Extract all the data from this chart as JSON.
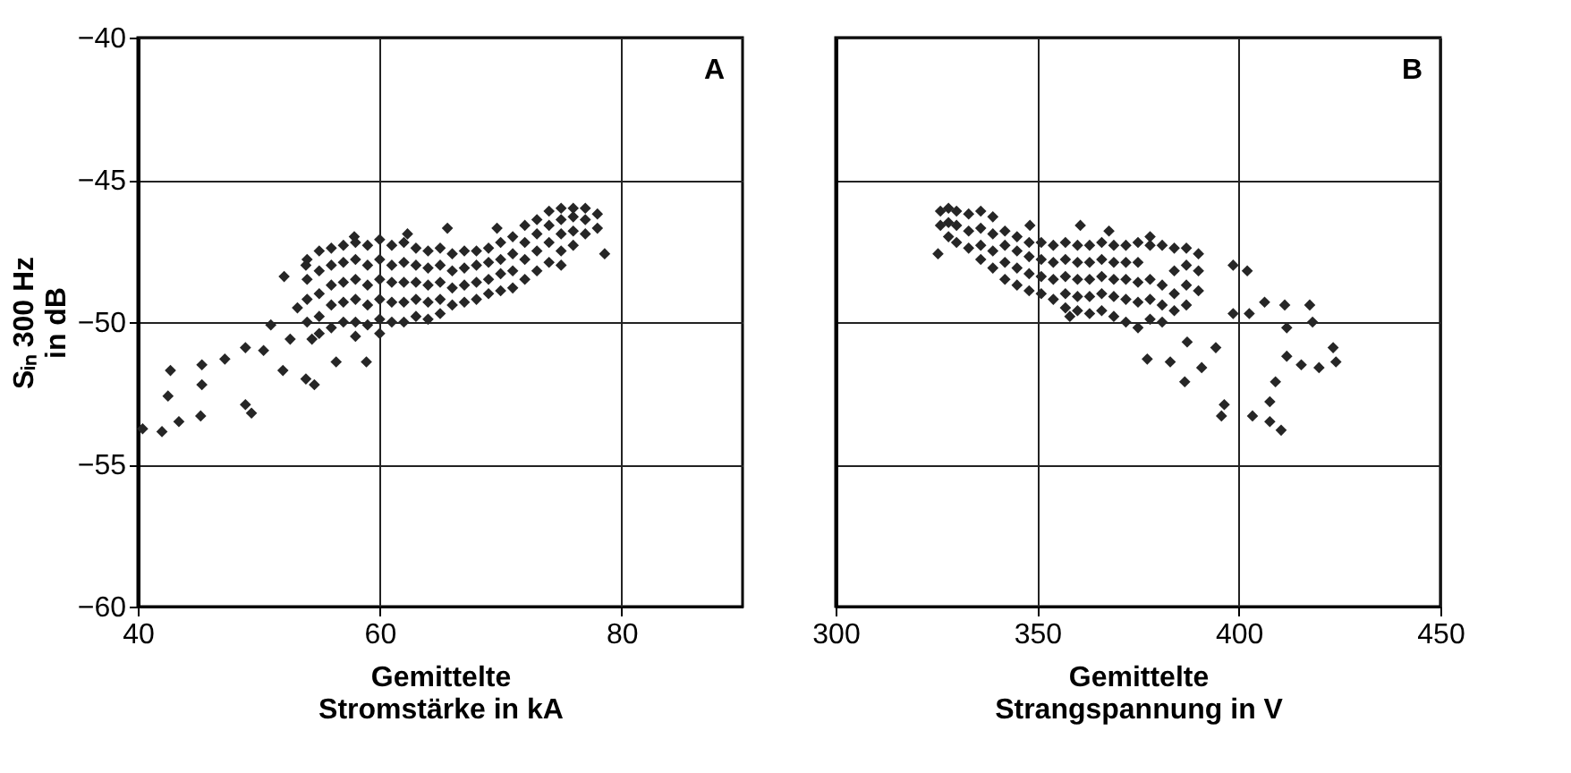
{
  "chart_data": [
    {
      "type": "scatter",
      "xlabel": "Gemittelte\nStromstärke in kA",
      "ylabel": "Sᵢₙ 300 Hz\nin dB",
      "annotations": [
        "A"
      ],
      "marker": "diamond",
      "grid": true,
      "xlim": [
        40,
        90
      ],
      "xticks": [
        40,
        60,
        80
      ],
      "ylim": [
        -60,
        -40
      ],
      "yticks": [
        -60,
        -55,
        -50,
        -45,
        -40
      ],
      "series": [
        {
          "color": "#262626",
          "x": [
            40.4,
            42.0,
            43.4,
            45.2,
            42.5,
            42.7,
            45.3,
            45.3,
            47.2,
            48.9,
            50.4,
            48.9,
            49.4,
            51.0,
            52.0,
            52.6,
            53.9,
            54.6,
            54.4,
            56.4,
            58.9,
            52.1,
            53.9,
            53.2,
            57.9,
            62.3,
            65.6,
            69.7,
            78.6,
            54,
            54,
            54,
            54,
            55,
            55,
            55,
            55,
            55,
            56,
            56,
            56,
            56,
            56,
            57,
            57,
            57,
            57,
            57,
            58,
            58,
            58,
            58,
            58,
            58,
            59,
            59,
            59,
            59,
            59,
            60,
            60,
            60,
            60,
            60,
            60,
            61,
            61,
            61,
            61,
            61,
            62,
            62,
            62,
            62,
            62,
            63,
            63,
            63,
            63,
            63,
            64,
            64,
            64,
            64,
            64,
            65,
            65,
            65,
            65,
            65,
            66,
            66,
            66,
            66,
            67,
            67,
            67,
            67,
            68,
            68,
            68,
            68,
            69,
            69,
            69,
            69,
            70,
            70,
            70,
            70,
            71,
            71,
            71,
            71,
            72,
            72,
            72,
            72,
            73,
            73,
            73,
            73,
            74,
            74,
            74,
            74,
            75,
            75,
            75,
            75,
            75,
            76,
            76,
            76,
            76,
            77,
            77,
            77,
            78,
            78
          ],
          "values": [
            -53.75,
            -53.85,
            -53.5,
            -53.3,
            -52.6,
            -51.7,
            -51.5,
            -52.2,
            -51.3,
            -50.9,
            -51.0,
            -52.9,
            -53.2,
            -50.1,
            -51.7,
            -50.6,
            -52.0,
            -52.2,
            -50.6,
            -51.4,
            -51.4,
            -48.4,
            -48.0,
            -49.5,
            -47.0,
            -46.9,
            -46.7,
            -46.7,
            -47.6,
            -47.8,
            -48.5,
            -49.2,
            -50.0,
            -47.5,
            -48.2,
            -49.0,
            -49.8,
            -50.4,
            -47.4,
            -48.0,
            -48.7,
            -49.4,
            -50.2,
            -47.3,
            -47.9,
            -48.6,
            -49.3,
            -50.0,
            -47.2,
            -47.8,
            -48.5,
            -49.2,
            -50.0,
            -50.5,
            -47.3,
            -48.0,
            -48.7,
            -49.4,
            -50.1,
            -47.1,
            -47.8,
            -48.5,
            -49.2,
            -49.9,
            -50.4,
            -47.3,
            -48.0,
            -48.6,
            -49.3,
            -50.0,
            -47.2,
            -47.9,
            -48.6,
            -49.3,
            -50.0,
            -47.4,
            -48.0,
            -48.6,
            -49.2,
            -49.8,
            -47.5,
            -48.1,
            -48.7,
            -49.3,
            -49.9,
            -47.4,
            -48.0,
            -48.6,
            -49.2,
            -49.7,
            -47.6,
            -48.2,
            -48.8,
            -49.4,
            -47.5,
            -48.1,
            -48.7,
            -49.3,
            -47.5,
            -48.0,
            -48.6,
            -49.2,
            -47.4,
            -47.9,
            -48.5,
            -49.0,
            -47.2,
            -47.8,
            -48.3,
            -48.9,
            -47.0,
            -47.6,
            -48.2,
            -48.8,
            -46.6,
            -47.2,
            -47.8,
            -48.5,
            -46.4,
            -46.9,
            -47.5,
            -48.2,
            -46.1,
            -46.6,
            -47.2,
            -47.9,
            -46.0,
            -46.4,
            -46.9,
            -47.5,
            -48.0,
            -46.0,
            -46.3,
            -46.8,
            -47.3,
            -46.0,
            -46.4,
            -46.9,
            -46.2,
            -46.7
          ]
        }
      ]
    },
    {
      "type": "scatter",
      "xlabel": "Gemittelte\nStrangspannung in V",
      "annotations": [
        "B"
      ],
      "marker": "diamond",
      "grid": true,
      "tick_labels": "x",
      "xlim": [
        300,
        450
      ],
      "xticks": [
        300,
        350,
        400,
        450
      ],
      "ylim": [
        -60,
        -40
      ],
      "yticks": [
        -60,
        -55,
        -50,
        -45,
        -40
      ],
      "series": [
        {
          "color": "#262626",
          "x": [
            325.4,
            348.2,
            360.7,
            367.8,
            378.0,
            398.6,
            402.1,
            406.4,
            411.4,
            417.6,
            418.3,
            411.9,
            402.6,
            398.6,
            394.3,
            390.8,
            386.6,
            383.0,
            377.3,
            387.2,
            411.9,
            415.5,
            419.9,
            423.4,
            424.1,
            409.1,
            407.7,
            396.4,
            395.7,
            403.4,
            407.7,
            410.5,
            358.1,
            326,
            326,
            328,
            328,
            328,
            330,
            330,
            330,
            333,
            333,
            333,
            336,
            336,
            336,
            336,
            339,
            339,
            339,
            339,
            342,
            342,
            342,
            342,
            345,
            345,
            345,
            345,
            348,
            348,
            348,
            348,
            351,
            351,
            351,
            351,
            354,
            354,
            354,
            354,
            357,
            357,
            357,
            357,
            357,
            360,
            360,
            360,
            360,
            360,
            363,
            363,
            363,
            363,
            363,
            366,
            366,
            366,
            366,
            366,
            369,
            369,
            369,
            369,
            369,
            372,
            372,
            372,
            372,
            372,
            375,
            375,
            375,
            375,
            375,
            378,
            378,
            378,
            378,
            381,
            381,
            381,
            381,
            384,
            384,
            384,
            384,
            387,
            387,
            387,
            387,
            390,
            390,
            390
          ],
          "values": [
            -47.6,
            -46.6,
            -46.6,
            -46.8,
            -47.0,
            -48.0,
            -48.2,
            -49.3,
            -49.4,
            -49.4,
            -50.0,
            -50.2,
            -49.7,
            -49.7,
            -50.9,
            -51.6,
            -52.1,
            -51.4,
            -51.3,
            -50.7,
            -51.2,
            -51.5,
            -51.6,
            -50.9,
            -51.4,
            -52.1,
            -52.8,
            -52.9,
            -53.3,
            -53.3,
            -53.5,
            -53.8,
            -49.8,
            -46.1,
            -46.6,
            -46.0,
            -46.5,
            -47.0,
            -46.1,
            -46.6,
            -47.2,
            -46.2,
            -46.8,
            -47.4,
            -46.1,
            -46.7,
            -47.3,
            -47.8,
            -46.3,
            -46.9,
            -47.5,
            -48.1,
            -46.8,
            -47.3,
            -47.9,
            -48.5,
            -47.0,
            -47.5,
            -48.1,
            -48.7,
            -47.2,
            -47.7,
            -48.3,
            -48.9,
            -47.2,
            -47.8,
            -48.4,
            -49.0,
            -47.3,
            -47.9,
            -48.5,
            -49.2,
            -47.2,
            -47.8,
            -48.4,
            -49.0,
            -49.5,
            -47.3,
            -47.9,
            -48.5,
            -49.1,
            -49.6,
            -47.3,
            -47.9,
            -48.5,
            -49.1,
            -49.7,
            -47.2,
            -47.8,
            -48.4,
            -49.0,
            -49.6,
            -47.3,
            -47.9,
            -48.5,
            -49.1,
            -49.8,
            -47.3,
            -47.9,
            -48.5,
            -49.2,
            -50.0,
            -47.2,
            -47.9,
            -48.6,
            -49.3,
            -50.2,
            -47.3,
            -48.5,
            -49.2,
            -49.9,
            -47.3,
            -48.7,
            -49.4,
            -50.0,
            -47.4,
            -48.2,
            -49.0,
            -49.6,
            -47.4,
            -48.0,
            -48.7,
            -49.4,
            -47.6,
            -48.2,
            -48.9
          ]
        }
      ]
    }
  ]
}
